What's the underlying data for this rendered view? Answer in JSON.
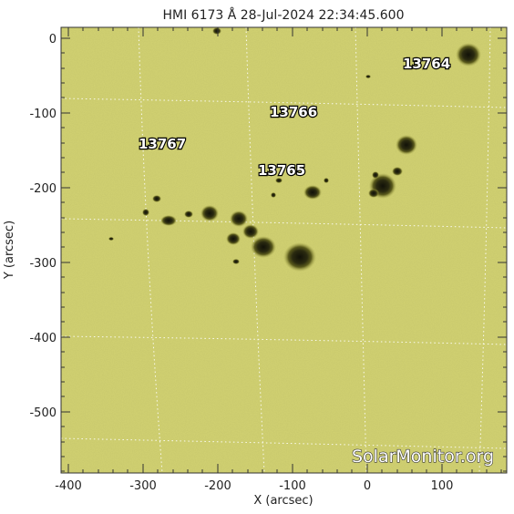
{
  "title": "HMI 6173 Å 28-Jul-2024 22:34:45.600",
  "xlabel": "X (arcsec)",
  "ylabel": "Y (arcsec)",
  "x_ticks": [
    "-400",
    "-300",
    "-200",
    "-100",
    "0",
    "100"
  ],
  "y_ticks": [
    "0",
    "-100",
    "-200",
    "-300",
    "-400",
    "-500"
  ],
  "active_regions": [
    {
      "label": "13764"
    },
    {
      "label": "13766"
    },
    {
      "label": "13767"
    },
    {
      "label": "13765"
    }
  ],
  "watermark": "SolarMonitor.org",
  "colors": {
    "disk": "#d2d272",
    "spot_penumbra": "#5a5a1c",
    "spot_umbra": "#16160a",
    "grid": "#ffffff"
  }
}
